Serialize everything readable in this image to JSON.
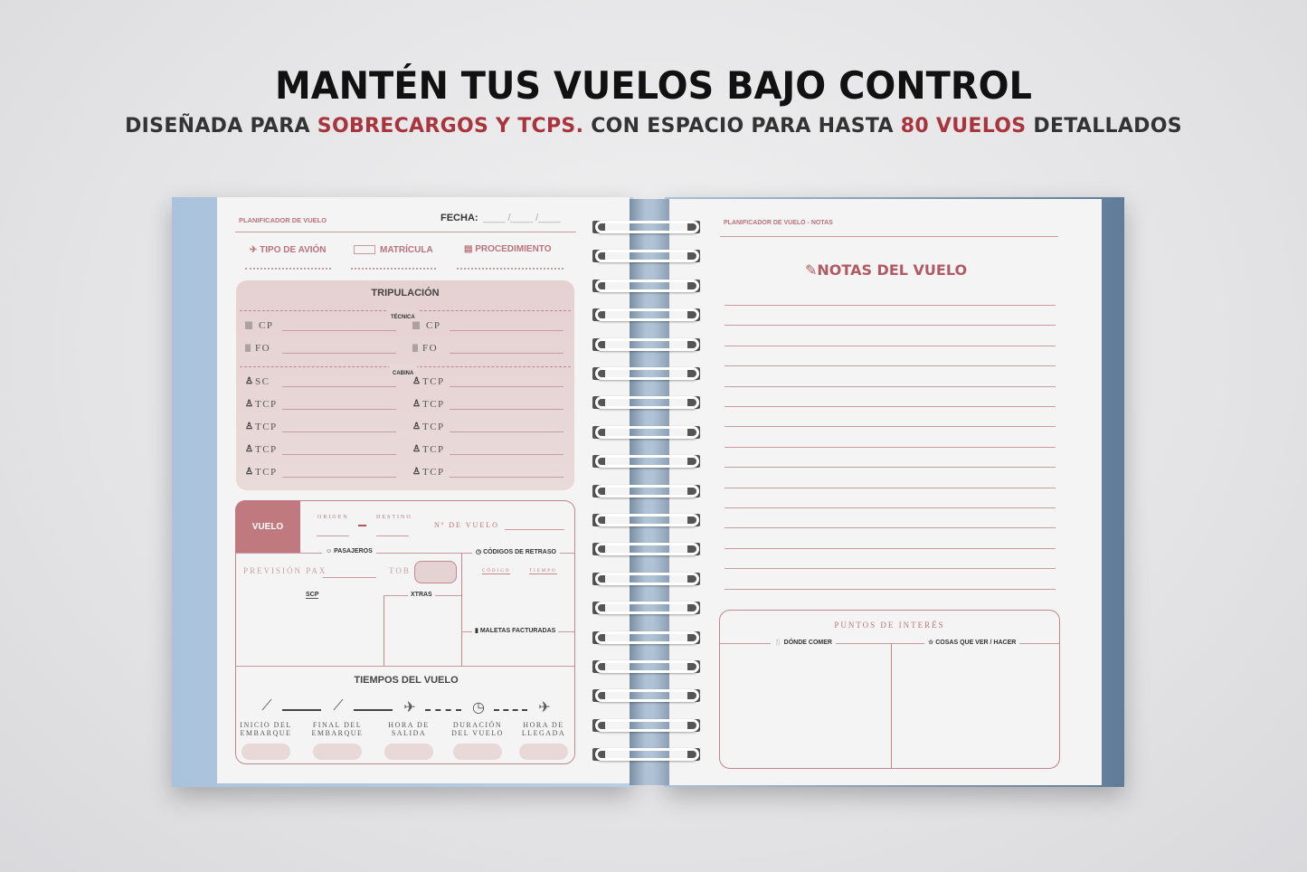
{
  "headline": "MANTÉN TUS VUELOS BAJO CONTROL",
  "subheadline": {
    "p1": "DISEÑADA PARA ",
    "p2": "SOBRECARGOS Y TCPS.",
    "p3": " CON ESPACIO PARA HASTA ",
    "p4": "80 VUELOS",
    "p5": " DETALLADOS"
  },
  "colors": {
    "accent": "#a8353d",
    "rose": "#c2868c",
    "cover": "#aac3dc"
  },
  "left_page": {
    "header": "PLANIFICADOR DE VUELO",
    "fecha": "FECHA:",
    "fecha_blank": "____ /____ /____",
    "fields": [
      {
        "icon": "plane-icon",
        "label": "TIPO DE AVIÓN"
      },
      {
        "icon": "registration-plate-icon",
        "label": "MATRÍCULA"
      },
      {
        "icon": "document-icon",
        "label": "PROCEDIMIENTO"
      }
    ],
    "crew": {
      "title": "TRIPULACIÓN",
      "tecnica": "TÉCNICA",
      "cabina": "CABINA",
      "rows": [
        [
          "CP",
          "CP"
        ],
        [
          "FO",
          "FO"
        ],
        [
          "SC",
          "TCP"
        ],
        [
          "TCP",
          "TCP"
        ],
        [
          "TCP",
          "TCP"
        ],
        [
          "TCP",
          "TCP"
        ],
        [
          "TCP",
          "TCP"
        ]
      ]
    },
    "flight": {
      "vuelo": "VUELO",
      "origen": "ORIGEN",
      "destino": "DESTINO",
      "numero": "Nº DE VUELO",
      "pasajeros": "PASAJEROS",
      "codigos": "CÓDIGOS DE RETRASO",
      "prevision": "PREVISIÓN PAX",
      "tob": "TOB",
      "codigo": "CÓDIGO",
      "tiempo": "TIEMPO",
      "scp": "SCP",
      "xtras": "XTRAS",
      "maletas": "MALETAS FACTURADAS"
    },
    "times": {
      "title": "TIEMPOS DEL VUELO",
      "items": [
        {
          "l1": "INICIO DEL",
          "l2": "EMBARQUE"
        },
        {
          "l1": "FINAL DEL",
          "l2": "EMBARQUE"
        },
        {
          "l1": "HORA DE",
          "l2": "SALIDA"
        },
        {
          "l1": "DURACIÓN",
          "l2": "DEL VUELO"
        },
        {
          "l1": "HORA DE",
          "l2": "LLEGADA"
        }
      ]
    }
  },
  "right_page": {
    "header": "PLANIFICADOR DE VUELO - NOTAS",
    "title": "NOTAS DEL VUELO",
    "poi": "PUNTOS DE INTERÉS",
    "comer": "DÓNDE COMER",
    "ver": "COSAS QUE VER / HACER"
  }
}
